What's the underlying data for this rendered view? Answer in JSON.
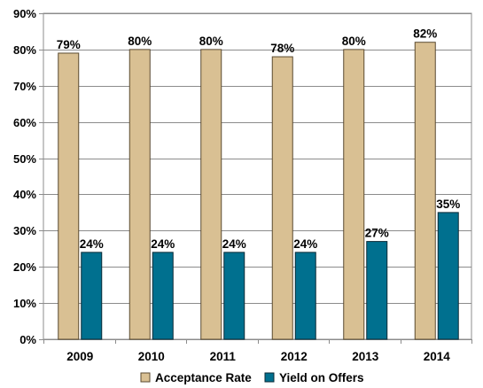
{
  "chart_data": {
    "type": "bar",
    "categories": [
      "2009",
      "2010",
      "2011",
      "2012",
      "2013",
      "2014"
    ],
    "series": [
      {
        "name": "Acceptance Rate",
        "values": [
          79,
          80,
          80,
          78,
          80,
          82
        ],
        "labels": [
          "79%",
          "80%",
          "80%",
          "78%",
          "80%",
          "82%"
        ],
        "color": "#D9C093",
        "stroke": "#5a4a30"
      },
      {
        "name": "Yield on Offers",
        "values": [
          24,
          24,
          24,
          24,
          27,
          35
        ],
        "labels": [
          "24%",
          "24%",
          "24%",
          "24%",
          "27%",
          "35%"
        ],
        "color": "#00708F",
        "stroke": "#0b2a36"
      }
    ],
    "yticks": [
      {
        "value": 0,
        "label": "0%"
      },
      {
        "value": 10,
        "label": "10%"
      },
      {
        "value": 20,
        "label": "20%"
      },
      {
        "value": 30,
        "label": "30%"
      },
      {
        "value": 40,
        "label": "40%"
      },
      {
        "value": 50,
        "label": "50%"
      },
      {
        "value": 60,
        "label": "60%"
      },
      {
        "value": 70,
        "label": "70%"
      },
      {
        "value": 80,
        "label": "80%"
      },
      {
        "value": 90,
        "label": "90%"
      }
    ],
    "ylim": [
      0,
      90
    ],
    "grid": true,
    "legend_position": "bottom",
    "plot_background": "#FFFFFF",
    "grid_color": "#8C8C8C"
  }
}
